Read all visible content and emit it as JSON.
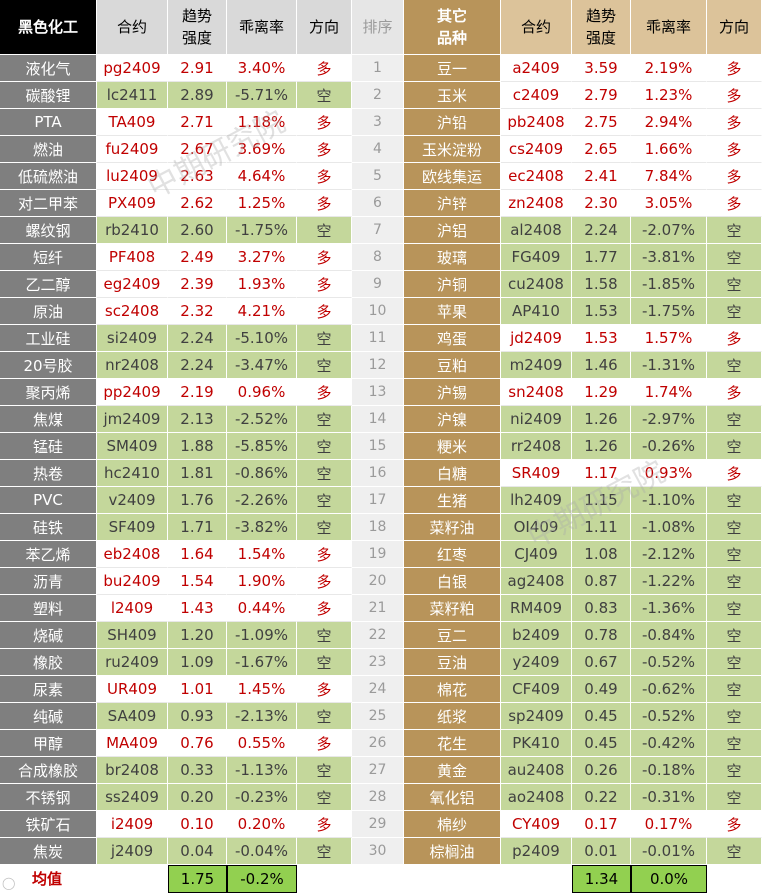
{
  "headers": {
    "black_group": "黑色化工",
    "contract": "合约",
    "trend_strength": [
      "趋势",
      "强度"
    ],
    "deviation": "乖离率",
    "direction": "方向",
    "rank": "排序",
    "other_group": [
      "其它",
      "品种"
    ]
  },
  "left_rows": [
    {
      "name": "液化气",
      "contract": "pg2409",
      "strength": "2.91",
      "deviation": "3.40%",
      "direction": "多",
      "type": "long"
    },
    {
      "name": "碳酸锂",
      "contract": "lc2411",
      "strength": "2.89",
      "deviation": "-5.71%",
      "direction": "空",
      "type": "short"
    },
    {
      "name": "PTA",
      "contract": "TA409",
      "strength": "2.71",
      "deviation": "1.18%",
      "direction": "多",
      "type": "long"
    },
    {
      "name": "燃油",
      "contract": "fu2409",
      "strength": "2.67",
      "deviation": "3.69%",
      "direction": "多",
      "type": "long"
    },
    {
      "name": "低硫燃油",
      "contract": "lu2409",
      "strength": "2.63",
      "deviation": "4.64%",
      "direction": "多",
      "type": "long"
    },
    {
      "name": "对二甲苯",
      "contract": "PX409",
      "strength": "2.62",
      "deviation": "1.25%",
      "direction": "多",
      "type": "long"
    },
    {
      "name": "螺纹钢",
      "contract": "rb2410",
      "strength": "2.60",
      "deviation": "-1.75%",
      "direction": "空",
      "type": "short"
    },
    {
      "name": "短纤",
      "contract": "PF408",
      "strength": "2.49",
      "deviation": "3.27%",
      "direction": "多",
      "type": "long"
    },
    {
      "name": "乙二醇",
      "contract": "eg2409",
      "strength": "2.39",
      "deviation": "1.93%",
      "direction": "多",
      "type": "long"
    },
    {
      "name": "原油",
      "contract": "sc2408",
      "strength": "2.32",
      "deviation": "4.21%",
      "direction": "多",
      "type": "long"
    },
    {
      "name": "工业硅",
      "contract": "si2409",
      "strength": "2.24",
      "deviation": "-5.10%",
      "direction": "空",
      "type": "short"
    },
    {
      "name": "20号胶",
      "contract": "nr2408",
      "strength": "2.24",
      "deviation": "-3.47%",
      "direction": "空",
      "type": "short"
    },
    {
      "name": "聚丙烯",
      "contract": "pp2409",
      "strength": "2.19",
      "deviation": "0.96%",
      "direction": "多",
      "type": "long"
    },
    {
      "name": "焦煤",
      "contract": "jm2409",
      "strength": "2.13",
      "deviation": "-2.52%",
      "direction": "空",
      "type": "short"
    },
    {
      "name": "锰硅",
      "contract": "SM409",
      "strength": "1.88",
      "deviation": "-5.85%",
      "direction": "空",
      "type": "short"
    },
    {
      "name": "热卷",
      "contract": "hc2410",
      "strength": "1.81",
      "deviation": "-0.86%",
      "direction": "空",
      "type": "short"
    },
    {
      "name": "PVC",
      "contract": "v2409",
      "strength": "1.76",
      "deviation": "-2.26%",
      "direction": "空",
      "type": "short"
    },
    {
      "name": "硅铁",
      "contract": "SF409",
      "strength": "1.71",
      "deviation": "-3.82%",
      "direction": "空",
      "type": "short"
    },
    {
      "name": "苯乙烯",
      "contract": "eb2408",
      "strength": "1.64",
      "deviation": "1.54%",
      "direction": "多",
      "type": "long"
    },
    {
      "name": "沥青",
      "contract": "bu2409",
      "strength": "1.54",
      "deviation": "1.90%",
      "direction": "多",
      "type": "long"
    },
    {
      "name": "塑料",
      "contract": "l2409",
      "strength": "1.43",
      "deviation": "0.44%",
      "direction": "多",
      "type": "long"
    },
    {
      "name": "烧碱",
      "contract": "SH409",
      "strength": "1.20",
      "deviation": "-1.09%",
      "direction": "空",
      "type": "short"
    },
    {
      "name": "橡胶",
      "contract": "ru2409",
      "strength": "1.09",
      "deviation": "-1.67%",
      "direction": "空",
      "type": "short"
    },
    {
      "name": "尿素",
      "contract": "UR409",
      "strength": "1.01",
      "deviation": "1.45%",
      "direction": "多",
      "type": "long"
    },
    {
      "name": "纯碱",
      "contract": "SA409",
      "strength": "0.93",
      "deviation": "-2.13%",
      "direction": "空",
      "type": "short"
    },
    {
      "name": "甲醇",
      "contract": "MA409",
      "strength": "0.76",
      "deviation": "0.55%",
      "direction": "多",
      "type": "long"
    },
    {
      "name": "合成橡胶",
      "contract": "br2408",
      "strength": "0.33",
      "deviation": "-1.13%",
      "direction": "空",
      "type": "short"
    },
    {
      "name": "不锈钢",
      "contract": "ss2409",
      "strength": "0.20",
      "deviation": "-0.23%",
      "direction": "空",
      "type": "short"
    },
    {
      "name": "铁矿石",
      "contract": "i2409",
      "strength": "0.10",
      "deviation": "0.20%",
      "direction": "多",
      "type": "long"
    },
    {
      "name": "焦炭",
      "contract": "j2409",
      "strength": "0.04",
      "deviation": "-0.04%",
      "direction": "空",
      "type": "short"
    }
  ],
  "right_rows": [
    {
      "name": "豆一",
      "contract": "a2409",
      "strength": "3.59",
      "deviation": "2.19%",
      "direction": "多",
      "type": "long"
    },
    {
      "name": "玉米",
      "contract": "c2409",
      "strength": "2.79",
      "deviation": "1.23%",
      "direction": "多",
      "type": "long"
    },
    {
      "name": "沪铅",
      "contract": "pb2408",
      "strength": "2.75",
      "deviation": "2.94%",
      "direction": "多",
      "type": "long"
    },
    {
      "name": "玉米淀粉",
      "contract": "cs2409",
      "strength": "2.65",
      "deviation": "1.66%",
      "direction": "多",
      "type": "long"
    },
    {
      "name": "欧线集运",
      "contract": "ec2408",
      "strength": "2.41",
      "deviation": "7.84%",
      "direction": "多",
      "type": "long"
    },
    {
      "name": "沪锌",
      "contract": "zn2408",
      "strength": "2.30",
      "deviation": "3.05%",
      "direction": "多",
      "type": "long"
    },
    {
      "name": "沪铝",
      "contract": "al2408",
      "strength": "2.24",
      "deviation": "-2.07%",
      "direction": "空",
      "type": "short"
    },
    {
      "name": "玻璃",
      "contract": "FG409",
      "strength": "1.77",
      "deviation": "-3.81%",
      "direction": "空",
      "type": "short"
    },
    {
      "name": "沪铜",
      "contract": "cu2408",
      "strength": "1.58",
      "deviation": "-1.85%",
      "direction": "空",
      "type": "short"
    },
    {
      "name": "苹果",
      "contract": "AP410",
      "strength": "1.53",
      "deviation": "-1.75%",
      "direction": "空",
      "type": "short"
    },
    {
      "name": "鸡蛋",
      "contract": "jd2409",
      "strength": "1.53",
      "deviation": "1.57%",
      "direction": "多",
      "type": "long"
    },
    {
      "name": "豆粕",
      "contract": "m2409",
      "strength": "1.46",
      "deviation": "-1.31%",
      "direction": "空",
      "type": "short"
    },
    {
      "name": "沪锡",
      "contract": "sn2408",
      "strength": "1.29",
      "deviation": "1.74%",
      "direction": "多",
      "type": "long"
    },
    {
      "name": "沪镍",
      "contract": "ni2409",
      "strength": "1.26",
      "deviation": "-2.97%",
      "direction": "空",
      "type": "short"
    },
    {
      "name": "粳米",
      "contract": "rr2408",
      "strength": "1.26",
      "deviation": "-0.26%",
      "direction": "空",
      "type": "short"
    },
    {
      "name": "白糖",
      "contract": "SR409",
      "strength": "1.17",
      "deviation": "0.93%",
      "direction": "多",
      "type": "long"
    },
    {
      "name": "生猪",
      "contract": "lh2409",
      "strength": "1.15",
      "deviation": "-1.10%",
      "direction": "空",
      "type": "short"
    },
    {
      "name": "菜籽油",
      "contract": "OI409",
      "strength": "1.11",
      "deviation": "-1.08%",
      "direction": "空",
      "type": "short"
    },
    {
      "name": "红枣",
      "contract": "CJ409",
      "strength": "1.08",
      "deviation": "-2.12%",
      "direction": "空",
      "type": "short"
    },
    {
      "name": "白银",
      "contract": "ag2408",
      "strength": "0.87",
      "deviation": "-1.22%",
      "direction": "空",
      "type": "short"
    },
    {
      "name": "菜籽粕",
      "contract": "RM409",
      "strength": "0.83",
      "deviation": "-1.36%",
      "direction": "空",
      "type": "short"
    },
    {
      "name": "豆二",
      "contract": "b2409",
      "strength": "0.78",
      "deviation": "-0.84%",
      "direction": "空",
      "type": "short"
    },
    {
      "name": "豆油",
      "contract": "y2409",
      "strength": "0.67",
      "deviation": "-0.52%",
      "direction": "空",
      "type": "short"
    },
    {
      "name": "棉花",
      "contract": "CF409",
      "strength": "0.49",
      "deviation": "-0.62%",
      "direction": "空",
      "type": "short"
    },
    {
      "name": "纸浆",
      "contract": "sp2409",
      "strength": "0.45",
      "deviation": "-0.52%",
      "direction": "空",
      "type": "short"
    },
    {
      "name": "花生",
      "contract": "PK410",
      "strength": "0.45",
      "deviation": "-0.42%",
      "direction": "空",
      "type": "short"
    },
    {
      "name": "黄金",
      "contract": "au2408",
      "strength": "0.26",
      "deviation": "-0.18%",
      "direction": "空",
      "type": "short"
    },
    {
      "name": "氧化铝",
      "contract": "ao2408",
      "strength": "0.22",
      "deviation": "-0.31%",
      "direction": "空",
      "type": "short"
    },
    {
      "name": "棉纱",
      "contract": "CY409",
      "strength": "0.17",
      "deviation": "0.17%",
      "direction": "多",
      "type": "long"
    },
    {
      "name": "棕榈油",
      "contract": "p2409",
      "strength": "0.01",
      "deviation": "-0.01%",
      "direction": "空",
      "type": "short"
    }
  ],
  "ranks": [
    "1",
    "2",
    "3",
    "4",
    "5",
    "6",
    "7",
    "8",
    "9",
    "10",
    "11",
    "12",
    "13",
    "14",
    "15",
    "16",
    "17",
    "18",
    "19",
    "20",
    "21",
    "22",
    "23",
    "24",
    "25",
    "26",
    "27",
    "28",
    "29",
    "30"
  ],
  "footer": {
    "label": "均值",
    "left_strength_avg": "1.75",
    "left_deviation_avg": "-0.2%",
    "right_strength_avg": "1.34",
    "right_deviation_avg": "0.0%"
  },
  "watermark": "中期研究院",
  "colors": {
    "long_text": "#c00000",
    "short_bg": "#c4d79b",
    "black_header": "#000000",
    "gold_header": "#b8945a",
    "avg_bg": "#92d050"
  }
}
